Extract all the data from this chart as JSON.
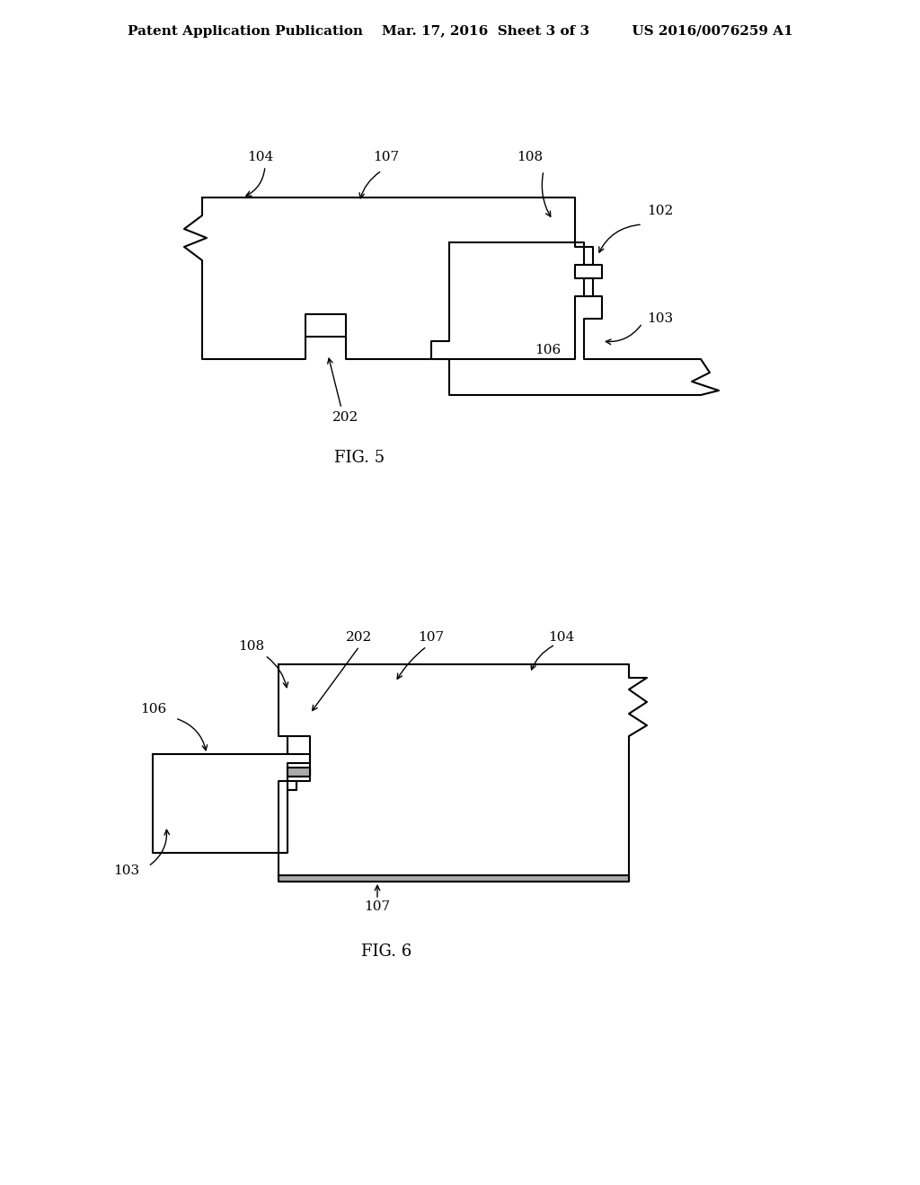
{
  "bg_color": "#ffffff",
  "line_color": "#000000",
  "header_text": "Patent Application Publication    Mar. 17, 2016  Sheet 3 of 3         US 2016/0076259 A1",
  "fig5_label": "FIG. 5",
  "fig6_label": "FIG. 6",
  "font_size_header": 11,
  "font_size_fig": 13,
  "font_size_label": 11
}
